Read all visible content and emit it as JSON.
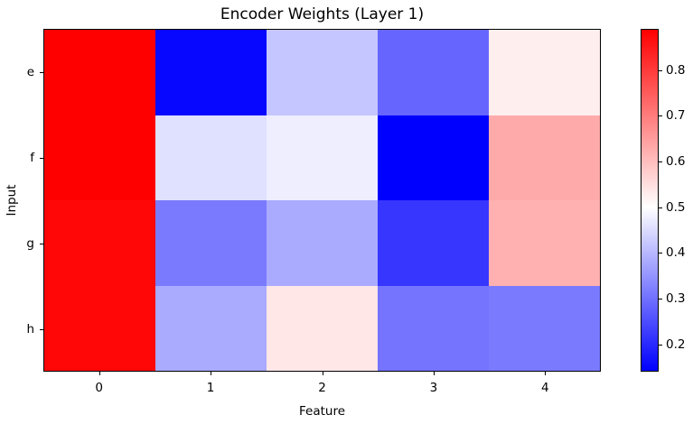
{
  "figure": {
    "title": "Encoder Weights (Layer 1)",
    "xlabel": "Feature",
    "ylabel": "Input",
    "background": "#ffffff",
    "spine_color": "#000000"
  },
  "chart_data": {
    "type": "heatmap",
    "title": "Encoder Weights (Layer 1)",
    "xlabel": "Feature",
    "ylabel": "Input",
    "rows": [
      "e",
      "f",
      "g",
      "h"
    ],
    "columns": [
      "0",
      "1",
      "2",
      "3",
      "4"
    ],
    "values": [
      [
        0.89,
        0.15,
        0.43,
        0.29,
        0.54
      ],
      [
        0.89,
        0.47,
        0.49,
        0.14,
        0.64
      ],
      [
        0.88,
        0.32,
        0.39,
        0.22,
        0.63
      ],
      [
        0.88,
        0.39,
        0.55,
        0.31,
        0.32
      ]
    ],
    "colormap": "bwr",
    "vmin": 0.14,
    "vmax": 0.89,
    "grid": false,
    "colorbar": {
      "tick_labels": [
        "0.8",
        "0.7",
        "0.6",
        "0.5",
        "0.4",
        "0.3",
        "0.2"
      ],
      "color_low": "#0000ff",
      "color_mid": "#ffffff",
      "color_high": "#ff0000"
    }
  }
}
